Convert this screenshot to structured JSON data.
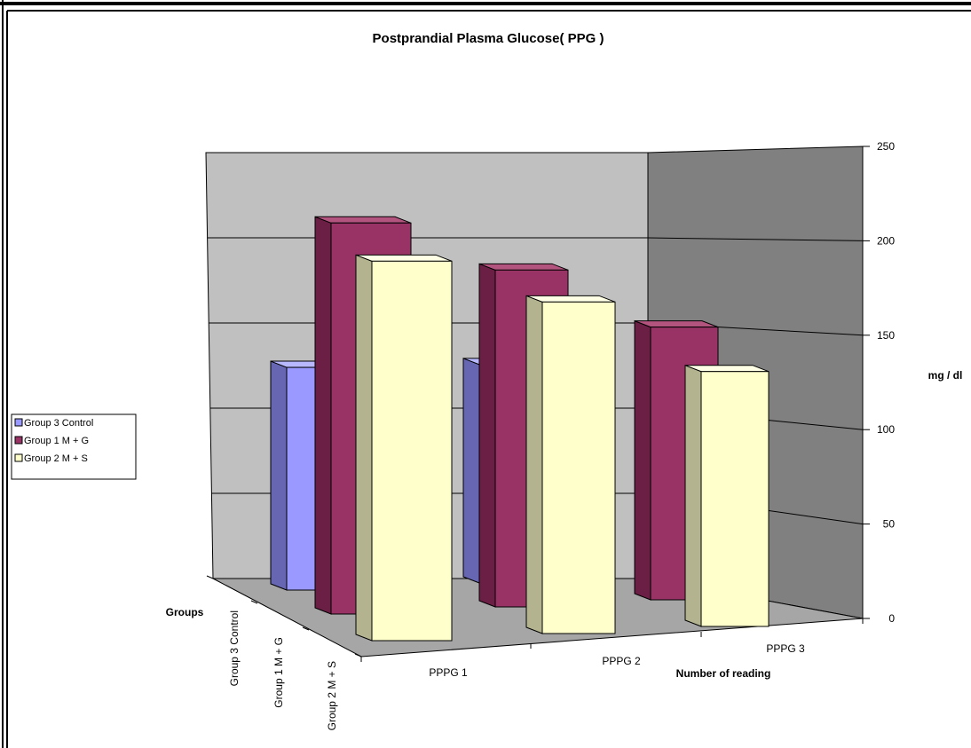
{
  "chart_data": {
    "type": "bar",
    "title": "Postprandial Plasma Glucose( PPG )",
    "xlabel": "Number of reading",
    "ylabel": "mg / dl",
    "zlabel": "Groups",
    "categories": [
      "PPPG 1",
      "PPPG 2",
      "PPPG 3"
    ],
    "ylim": [
      0,
      250
    ],
    "yticks": [
      0,
      50,
      100,
      150,
      200,
      250
    ],
    "series": [
      {
        "name": "Group 3 Control",
        "values": [
          105,
          103,
          null
        ]
      },
      {
        "name": "Group 1 M + G",
        "values": [
          195,
          168,
          136
        ]
      },
      {
        "name": "Group 2 M + S",
        "values": [
          198,
          173,
          133
        ]
      }
    ],
    "legend": "left",
    "grid": true,
    "colors": {
      "Group 3 Control": {
        "front": "#9999ff",
        "side": "#6666b3",
        "top": "#b8b8ff"
      },
      "Group 1 M + G": {
        "front": "#993366",
        "side": "#6b1f44",
        "top": "#b3547f"
      },
      "Group 2 M + S": {
        "front": "#ffffcc",
        "side": "#b3b38f",
        "top": "#ffffe6"
      }
    }
  }
}
